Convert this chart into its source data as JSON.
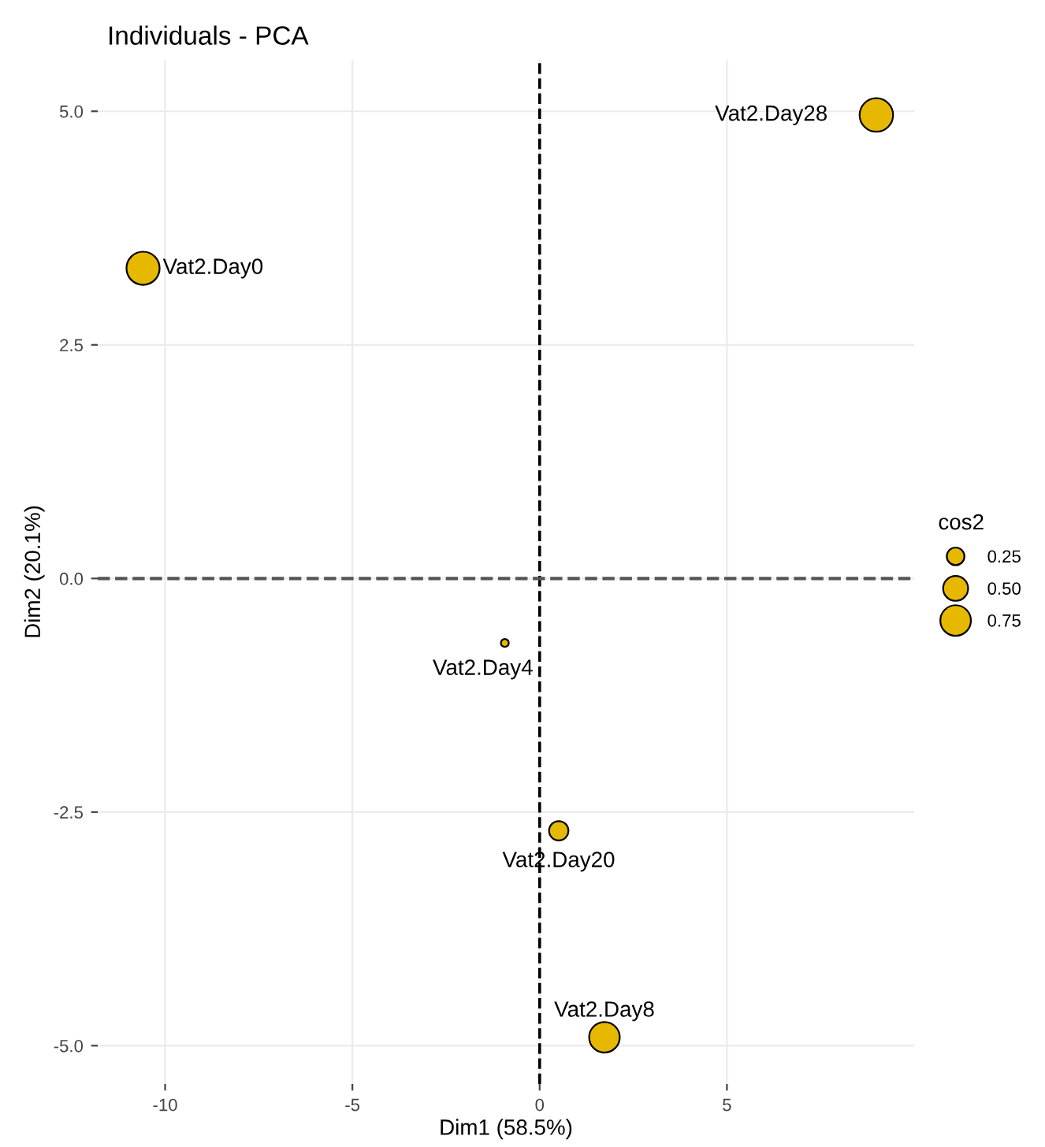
{
  "chart_data": {
    "type": "bubble",
    "title": "Individuals - PCA",
    "xlabel": "Dim1 (58.5%)",
    "ylabel": "Dim2 (20.1%)",
    "legend_title": "cos2",
    "x": [
      8.99,
      -10.59,
      -0.93,
      0.51,
      1.73
    ],
    "values": [
      4.96,
      3.32,
      -0.69,
      -2.7,
      -4.91
    ],
    "sizes": [
      0.9,
      0.88,
      0.05,
      0.3,
      0.75
    ],
    "size_legend": [
      {
        "value": 0.25,
        "label": "0.25"
      },
      {
        "value": 0.5,
        "label": "0.50"
      },
      {
        "value": 0.75,
        "label": "0.75"
      }
    ],
    "color": "#e7b800",
    "xlim": [
      -11.8,
      10.0
    ],
    "ylim": [
      -5.41,
      5.55
    ],
    "xticks": [
      -10,
      -5,
      0,
      5
    ],
    "yticks": [
      {
        "value": -5,
        "label": "-5.0"
      },
      {
        "value": -2.5,
        "label": "-2.5"
      },
      {
        "value": 0,
        "label": "0.0"
      },
      {
        "value": 2.5,
        "label": "2.5"
      },
      {
        "value": 5,
        "label": "5.0"
      }
    ],
    "ref_lines": [
      {
        "axis": "x",
        "value": 0,
        "line_style": "dashed",
        "color": "#000000"
      },
      {
        "axis": "y",
        "value": 0,
        "line_style": "dashed",
        "color": "#555555"
      }
    ],
    "annotations": [
      {
        "text": "Vat2.Day28",
        "x": 8.99,
        "y": 4.96
      },
      {
        "text": "Vat2.Day0",
        "x": -10.59,
        "y": 3.32
      },
      {
        "text": "Vat2.Day4",
        "x": -0.93,
        "y": -0.69
      },
      {
        "text": "Vat2.Day20",
        "x": 0.51,
        "y": -2.7
      },
      {
        "text": "Vat2.Day8",
        "x": 1.73,
        "y": -4.91
      }
    ],
    "grid": true,
    "marker": "circle"
  }
}
